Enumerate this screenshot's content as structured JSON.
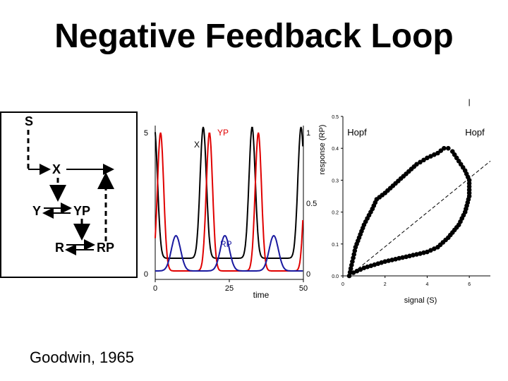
{
  "title": "Negative Feedback Loop",
  "citation": "Goodwin, 1965",
  "diagram": {
    "nodes": {
      "s": "S",
      "x": "X",
      "y": "Y",
      "yp": "YP",
      "r": "R",
      "rp": "RP"
    }
  },
  "chart_data": [
    {
      "type": "line",
      "xlabel": "time",
      "x_ticks": [
        "0",
        "25",
        "50"
      ],
      "y_left_ticks": [
        "0",
        "5"
      ],
      "y_right_ticks": [
        "0",
        "0.5",
        "1"
      ],
      "xlim": [
        0,
        50
      ],
      "ylim_left": [
        0,
        5
      ],
      "ylim_right": [
        0,
        1
      ],
      "colors": {
        "x": "#000000",
        "yp": "#e00000",
        "rp": "#1a1aa0"
      },
      "series": [
        {
          "name": "X",
          "axis": "left",
          "period": 16.5,
          "peak_times": [
            16.2,
            32.7,
            49.2
          ],
          "min": 0.55,
          "max": 5.2
        },
        {
          "name": "YP",
          "axis": "right",
          "period": 16.5,
          "peak_times": [
            18.3,
            34.8
          ],
          "min": 0.02,
          "max": 1.0
        },
        {
          "name": "RP",
          "axis": "right",
          "period": 16.5,
          "peak_times": [
            7.0,
            23.5,
            40.0
          ],
          "min": 0.02,
          "max": 0.27
        }
      ],
      "curve_labels": {
        "x": "X",
        "yp": "YP",
        "rp": "RP"
      }
    },
    {
      "type": "scatter",
      "xlabel": "signal (S)",
      "ylabel": "response (RP)",
      "x_ticks": [
        "0",
        "2",
        "4",
        "6"
      ],
      "y_ticks": [
        "0.0",
        "0.1",
        "0.2",
        "0.3",
        "0.4",
        "0.5"
      ],
      "xlim": [
        0,
        7
      ],
      "ylim": [
        0,
        0.5
      ],
      "loop_points": [
        [
          0.3,
          0.0
        ],
        [
          0.6,
          0.09
        ],
        [
          1.0,
          0.16
        ],
        [
          1.4,
          0.21
        ],
        [
          1.6,
          0.24
        ],
        [
          2.0,
          0.26
        ],
        [
          2.5,
          0.29
        ],
        [
          3.0,
          0.32
        ],
        [
          3.5,
          0.35
        ],
        [
          4.0,
          0.37
        ],
        [
          4.5,
          0.385
        ],
        [
          4.8,
          0.4
        ],
        [
          5.0,
          0.4
        ],
        [
          5.2,
          0.39
        ],
        [
          5.5,
          0.36
        ],
        [
          5.8,
          0.33
        ],
        [
          6.0,
          0.3
        ],
        [
          6.0,
          0.25
        ],
        [
          5.8,
          0.2
        ],
        [
          5.5,
          0.16
        ],
        [
          5.0,
          0.12
        ],
        [
          4.5,
          0.09
        ],
        [
          4.0,
          0.075
        ],
        [
          3.0,
          0.06
        ],
        [
          2.0,
          0.045
        ],
        [
          1.0,
          0.025
        ],
        [
          0.5,
          0.01
        ],
        [
          0.3,
          0.0
        ]
      ],
      "dashed_line": [
        [
          0.3,
          0.0
        ],
        [
          7.0,
          0.36
        ]
      ],
      "annotations": [
        {
          "text": "Hopf",
          "x": 0.3,
          "y": 0.0
        },
        {
          "text": "Hopf",
          "x": 6.0,
          "y": 0.3
        }
      ]
    }
  ]
}
